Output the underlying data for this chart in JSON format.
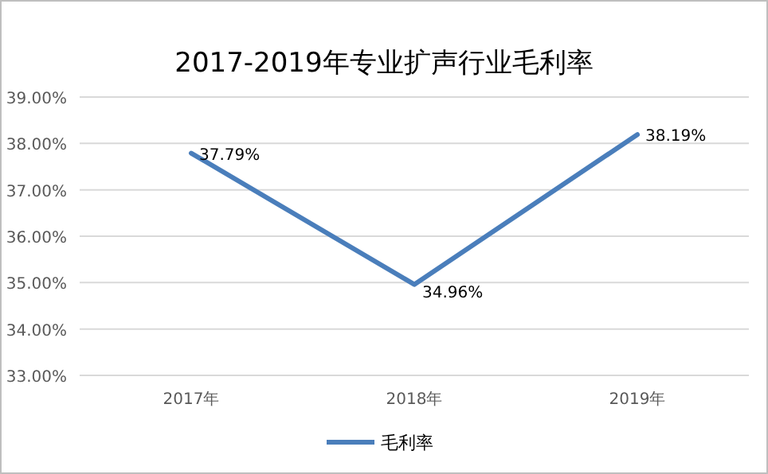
{
  "chart_data": {
    "type": "line",
    "title": "2017-2019年专业扩声行业毛利率",
    "categories": [
      "2017年",
      "2018年",
      "2019年"
    ],
    "series": [
      {
        "name": "毛利率",
        "color": "#4a7ebb",
        "values": [
          37.79,
          34.96,
          38.19
        ],
        "value_labels": [
          "37.79%",
          "34.96%",
          "38.19%"
        ]
      }
    ],
    "ylim": [
      33,
      39
    ],
    "yticks": [
      {
        "value": 33,
        "label": "33.00%"
      },
      {
        "value": 34,
        "label": "34.00%"
      },
      {
        "value": 35,
        "label": "35.00%"
      },
      {
        "value": 36,
        "label": "36.00%"
      },
      {
        "value": 37,
        "label": "37.00%"
      },
      {
        "value": 38,
        "label": "38.00%"
      },
      {
        "value": 39,
        "label": "39.00%"
      }
    ],
    "grid": "y",
    "legend": "bottom"
  }
}
